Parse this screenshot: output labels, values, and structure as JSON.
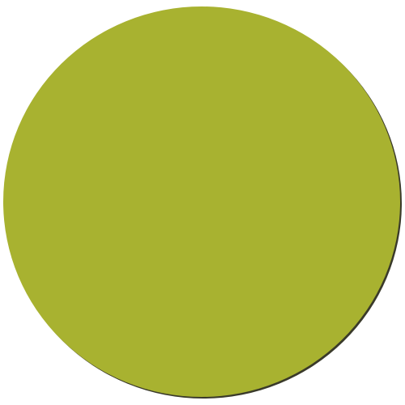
{
  "shape": {
    "type": "circle",
    "fill_color": "#a8b230",
    "shadow_color": "#3a3a2a"
  }
}
